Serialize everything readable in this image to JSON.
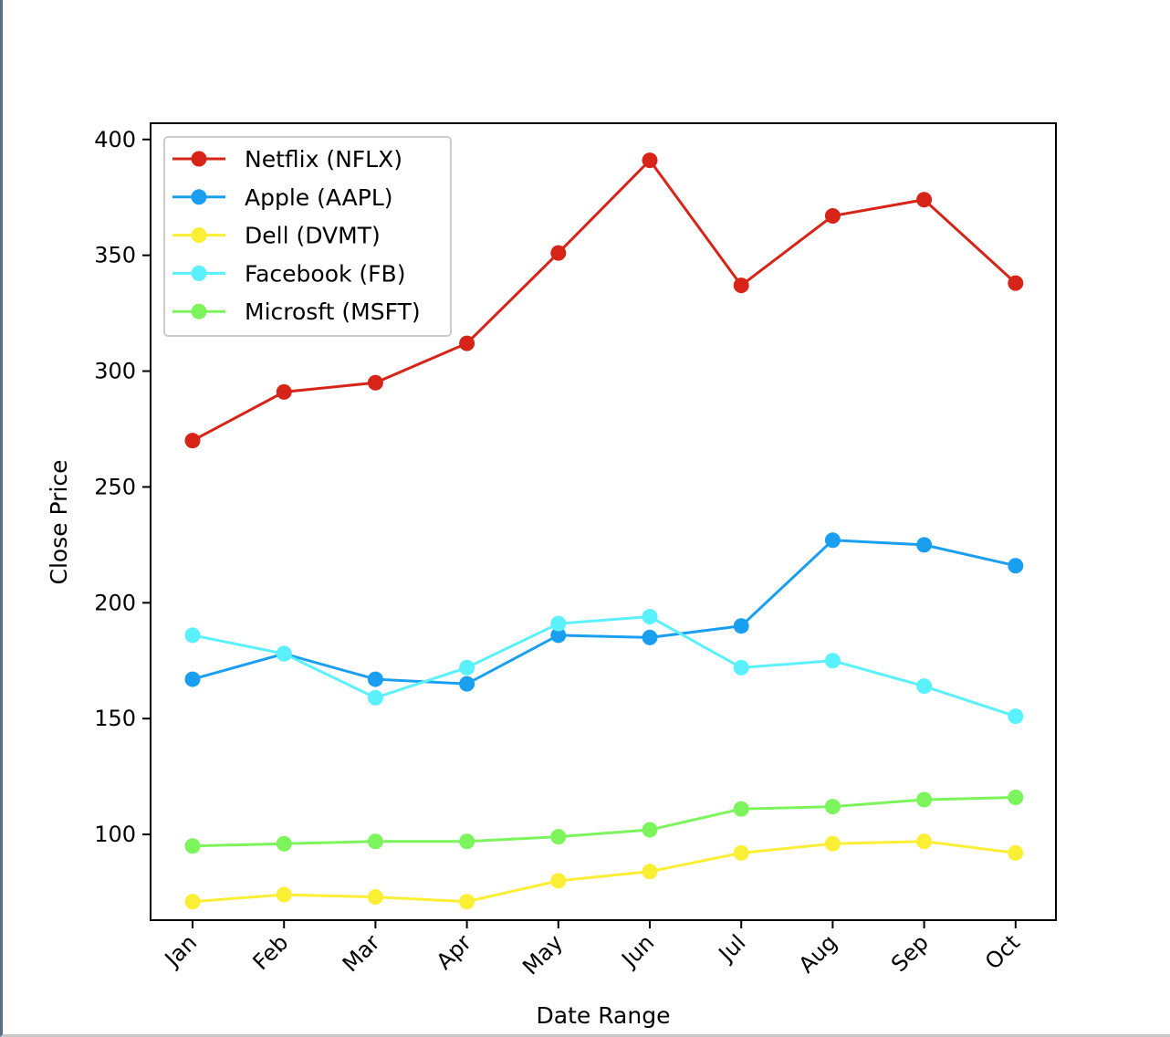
{
  "chart_data": {
    "type": "line",
    "title": "",
    "xlabel": "Date Range",
    "ylabel": "Close Price",
    "categories": [
      "Jan",
      "Feb",
      "Mar",
      "Apr",
      "May",
      "Jun",
      "Jul",
      "Aug",
      "Sep",
      "Oct"
    ],
    "ylim": [
      63,
      407
    ],
    "yticks": [
      100,
      150,
      200,
      250,
      300,
      350,
      400
    ],
    "grid": false,
    "legend": "upper-left",
    "series": [
      {
        "name": "Netflix (NFLX)",
        "color": "#d62418",
        "values": [
          270,
          291,
          295,
          312,
          351,
          391,
          337,
          367,
          374,
          338
        ]
      },
      {
        "name": "Apple (AAPL)",
        "color": "#1a9ff0",
        "values": [
          167,
          178,
          167,
          165,
          186,
          185,
          190,
          227,
          225,
          216
        ]
      },
      {
        "name": "Dell (DVMT)",
        "color": "#fbef36",
        "values": [
          71,
          74,
          73,
          71,
          80,
          84,
          92,
          96,
          97,
          92
        ]
      },
      {
        "name": "Facebook (FB)",
        "color": "#5af0fc",
        "values": [
          186,
          178,
          159,
          172,
          191,
          194,
          172,
          175,
          164,
          151
        ]
      },
      {
        "name": "Microsft (MSFT)",
        "color": "#7cf45c",
        "values": [
          95,
          96,
          97,
          97,
          99,
          102,
          111,
          112,
          115,
          116
        ]
      }
    ]
  }
}
